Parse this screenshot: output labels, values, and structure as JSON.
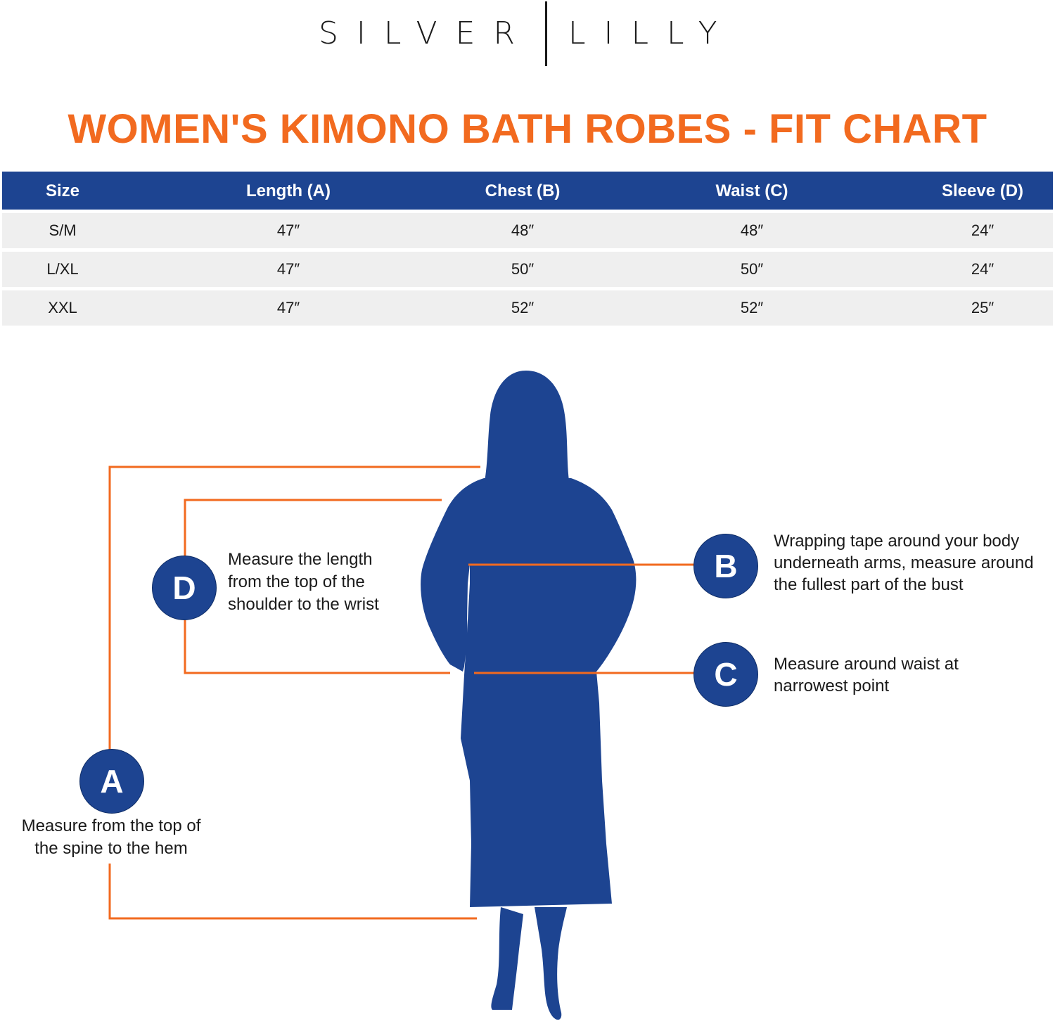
{
  "brand": {
    "left": "SILVER",
    "right": "LILLY"
  },
  "title": "WOMEN'S KIMONO BATH ROBES - FIT CHART",
  "table": {
    "headers": [
      "Size",
      "Length (A)",
      "Chest (B)",
      "Waist (C)",
      "Sleeve (D)"
    ],
    "rows": [
      [
        "S/M",
        "47″",
        "48″",
        "48″",
        "24″"
      ],
      [
        "L/XL",
        "47″",
        "50″",
        "50″",
        "24″"
      ],
      [
        "XXL",
        "47″",
        "52″",
        "52″",
        "25″"
      ]
    ]
  },
  "measurements": {
    "a": {
      "letter": "A",
      "lines": [
        "Measure from the top of",
        "the spine to the hem"
      ]
    },
    "b": {
      "letter": "B",
      "lines": [
        "Wrapping tape around your body",
        "underneath arms, measure around",
        "the fullest part of the bust"
      ]
    },
    "c": {
      "letter": "C",
      "lines": [
        "Measure around waist at",
        "narrowest point"
      ]
    },
    "d": {
      "letter": "D",
      "lines": [
        "Measure the length",
        "from the top of the",
        "shoulder to the wrist"
      ]
    }
  },
  "colors": {
    "accent": "#f26a1f",
    "navy": "#1d4491",
    "row_bg": "#efefef"
  }
}
